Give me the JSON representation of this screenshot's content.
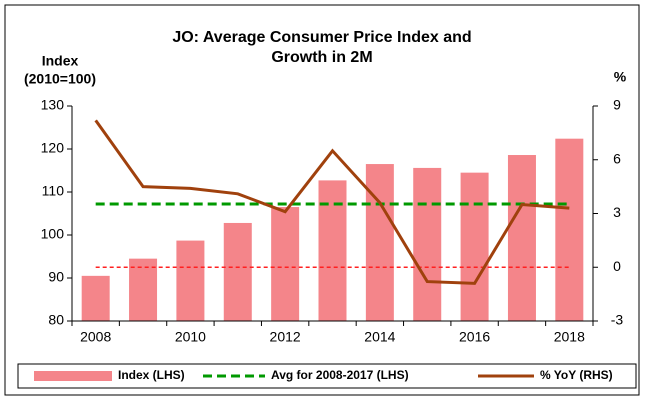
{
  "chart_data": {
    "type": "bar",
    "title": [
      "JO: Average Consumer Price Index and",
      "Growth in 2M"
    ],
    "y_label": [
      "Index",
      "(2010=100)"
    ],
    "y2_label": "%",
    "categories": [
      "2008",
      null,
      "2010",
      null,
      "2012",
      null,
      "2014",
      null,
      "2016",
      null,
      "2018"
    ],
    "series": [
      {
        "name": "Index (LHS)",
        "type": "bar",
        "color": "#f4858a",
        "values": [
          90.5,
          94.5,
          98.7,
          102.8,
          106.5,
          112.7,
          116.5,
          115.6,
          114.5,
          118.6,
          122.4
        ]
      },
      {
        "name": "Avg for 2008-2017 (LHS)",
        "type": "hline",
        "color": "#009900",
        "value": 107.2
      },
      {
        "name": "% YoY (RHS)",
        "type": "line",
        "axis": "y2",
        "color": "#a0410d",
        "values": [
          8.2,
          4.5,
          4.4,
          4.1,
          3.1,
          6.5,
          3.6,
          -0.8,
          -0.9,
          3.5,
          3.3
        ]
      }
    ],
    "ylim": [
      80,
      130
    ],
    "yticks": [
      80,
      90,
      100,
      110,
      120,
      130
    ],
    "y2lim": [
      -3,
      9
    ],
    "y2ticks": [
      -3,
      0,
      3,
      6,
      9
    ],
    "y2_zero_line_color": "#ff2020",
    "legend": "bottom"
  }
}
